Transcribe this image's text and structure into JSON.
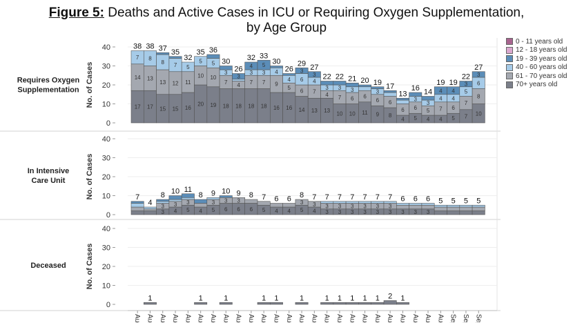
{
  "title": {
    "prefix": "Figure 5:",
    "line1": " Deaths and Active Cases in ICU or Requiring Oxygen Supplementation,",
    "line2": "by Age Group"
  },
  "chart_data": {
    "type": "bar",
    "stacked": true,
    "title": "Figure 5: Deaths and Active Cases in ICU or Requiring Oxygen Supplementation, by Age Group",
    "ylabel": "No. of Cases",
    "ylim": [
      0,
      40
    ],
    "yticks": [
      0,
      10,
      20,
      30,
      40
    ],
    "grid": true,
    "legend_position": "right",
    "categories": [
      "Aug-",
      "Aug-",
      "Aug-",
      "Aug-",
      "Aug-",
      "Aug-",
      "Aug-",
      "Aug-",
      "Aug-",
      "Aug-",
      "Aug-",
      "Aug-",
      "Aug-",
      "Aug-",
      "Aug-",
      "Aug-",
      "Aug-",
      "Aug-",
      "Aug-",
      "Aug-",
      "Aug-",
      "Aug-",
      "Aug-",
      "Aug-",
      "Aug-",
      "Sep-",
      "Sep-",
      "Sep-"
    ],
    "legend": [
      {
        "name": "0 - 11 years old",
        "color": "#a8648f"
      },
      {
        "name": "12 - 18 years old",
        "color": "#dba8cf"
      },
      {
        "name": "19 - 39 years old",
        "color": "#5b8db8"
      },
      {
        "name": "40 - 60 years old",
        "color": "#a6cbe8"
      },
      {
        "name": "61 - 70 years old",
        "color": "#a4a8b0"
      },
      {
        "name": "70+ years old",
        "color": "#7b7f8a"
      }
    ],
    "panels": [
      {
        "label": "Requires Oxygen Supplementation",
        "totals": [
          38,
          38,
          37,
          35,
          32,
          35,
          36,
          30,
          26,
          32,
          33,
          30,
          26,
          29,
          27,
          22,
          22,
          21,
          20,
          19,
          17,
          13,
          16,
          14,
          19,
          19,
          22,
          27
        ],
        "series": [
          {
            "name": "70+ years old",
            "values": [
              17,
              17,
              15,
              15,
              16,
              20,
              19,
              18,
              18,
              18,
              18,
              16,
              16,
              14,
              13,
              13,
              10,
              10,
              11,
              9,
              8,
              4,
              5,
              4,
              4,
              5,
              7,
              10
            ]
          },
          {
            "name": "61 - 70 years old",
            "values": [
              14,
              13,
              13,
              12,
              11,
              10,
              10,
              7,
              4,
              7,
              7,
              9,
              5,
              6,
              7,
              4,
              7,
              6,
              6,
              6,
              6,
              6,
              6,
              5,
              7,
              6,
              7,
              8
            ]
          },
          {
            "name": "40 - 60 years old",
            "values": [
              7,
              8,
              8,
              7,
              5,
              5,
              5,
              3,
              1,
              3,
              3,
              4,
              4,
              6,
              4,
              3,
              3,
              3,
              2,
              3,
              2,
              2,
              3,
              3,
              4,
              4,
              5,
              6
            ]
          },
          {
            "name": "19 - 39 years old",
            "values": [
              0,
              0,
              1,
              1,
              0,
              0,
              2,
              2,
              3,
              4,
              5,
              1,
              1,
              3,
              3,
              2,
              2,
              2,
              1,
              1,
              1,
              1,
              2,
              2,
              4,
              4,
              3,
              3
            ]
          }
        ]
      },
      {
        "label": "In Intensive Care Unit",
        "totals": [
          7,
          4,
          8,
          10,
          11,
          8,
          9,
          10,
          9,
          8,
          7,
          6,
          6,
          8,
          7,
          7,
          7,
          7,
          7,
          7,
          7,
          6,
          6,
          6,
          5,
          5,
          5,
          5
        ],
        "series": [
          {
            "name": "70+ years old",
            "values": [
              2,
              2,
              3,
              4,
              5,
              4,
              5,
              6,
              6,
              6,
              5,
              4,
              4,
              5,
              4,
              3,
              3,
              3,
              3,
              3,
              3,
              3,
              3,
              3,
              2,
              2,
              2,
              2
            ]
          },
          {
            "name": "61 - 70 years old",
            "values": [
              2,
              1,
              3,
              3,
              3,
              2,
              3,
              3,
              3,
              2,
              2,
              2,
              2,
              3,
              3,
              3,
              3,
              3,
              3,
              3,
              3,
              2,
              2,
              2,
              2,
              2,
              2,
              2
            ]
          },
          {
            "name": "40 - 60 years old",
            "values": [
              2,
              1,
              1,
              1,
              1,
              0,
              1,
              0,
              0,
              0,
              0,
              0,
              0,
              0,
              0,
              1,
              1,
              1,
              1,
              1,
              1,
              1,
              1,
              1,
              1,
              1,
              1,
              1
            ]
          },
          {
            "name": "19 - 39 years old",
            "values": [
              1,
              0,
              1,
              2,
              2,
              2,
              0,
              1,
              0,
              0,
              0,
              0,
              0,
              0,
              0,
              0,
              0,
              0,
              0,
              0,
              0,
              0,
              0,
              0,
              0,
              0,
              0,
              0
            ]
          }
        ]
      },
      {
        "label": "Deceased",
        "totals": [
          0,
          1,
          0,
          0,
          0,
          1,
          0,
          1,
          0,
          0,
          1,
          1,
          0,
          1,
          0,
          1,
          1,
          1,
          1,
          1,
          2,
          1,
          0,
          0,
          0,
          0,
          0,
          0
        ],
        "series": [
          {
            "name": "70+ years old",
            "values": [
              0,
              1,
              0,
              0,
              0,
              1,
              0,
              1,
              0,
              0,
              1,
              1,
              0,
              1,
              0,
              1,
              1,
              1,
              1,
              1,
              2,
              1,
              0,
              0,
              0,
              0,
              0,
              0
            ]
          }
        ]
      }
    ]
  }
}
